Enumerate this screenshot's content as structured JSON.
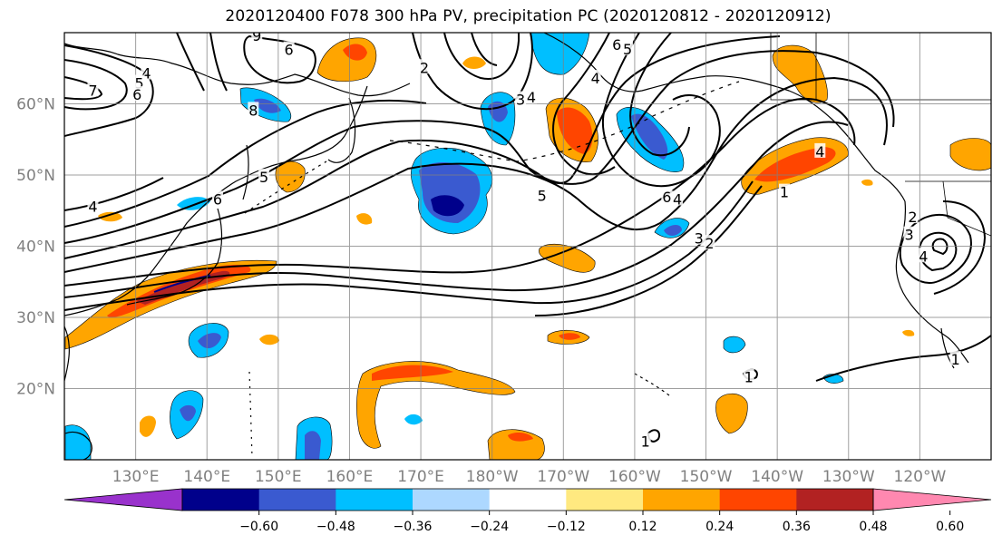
{
  "title": "2020120400 F078 300 hPa PV, precipitation PC (2020120812 - 2020120912)",
  "map": {
    "lon_range": [
      120,
      250
    ],
    "lat_range": [
      10,
      70
    ],
    "grid_step": 10,
    "lat_labels": [
      {
        "lat": 60,
        "text": "60°N"
      },
      {
        "lat": 50,
        "text": "50°N"
      },
      {
        "lat": 40,
        "text": "40°N"
      },
      {
        "lat": 30,
        "text": "30°N"
      },
      {
        "lat": 20,
        "text": "20°N"
      }
    ],
    "lon_labels": [
      {
        "lon": 130,
        "text": "130°E"
      },
      {
        "lon": 140,
        "text": "140°E"
      },
      {
        "lon": 150,
        "text": "150°E"
      },
      {
        "lon": 160,
        "text": "160°E"
      },
      {
        "lon": 170,
        "text": "170°E"
      },
      {
        "lon": 180,
        "text": "180°W"
      },
      {
        "lon": 190,
        "text": "170°W"
      },
      {
        "lon": 200,
        "text": "160°W"
      },
      {
        "lon": 210,
        "text": "150°W"
      },
      {
        "lon": 220,
        "text": "140°W"
      },
      {
        "lon": 230,
        "text": "130°W"
      },
      {
        "lon": 240,
        "text": "120°W"
      }
    ],
    "contour_labels": [
      {
        "lon": 131.5,
        "lat": 64.2,
        "text": "4"
      },
      {
        "lon": 130.5,
        "lat": 62.8,
        "text": "5"
      },
      {
        "lon": 130.2,
        "lat": 61.2,
        "text": "6"
      },
      {
        "lon": 124.0,
        "lat": 61.8,
        "text": "7"
      },
      {
        "lon": 124.0,
        "lat": 45.5,
        "text": "4"
      },
      {
        "lon": 147.0,
        "lat": 69.5,
        "text": "9"
      },
      {
        "lon": 151.5,
        "lat": 67.5,
        "text": "6"
      },
      {
        "lon": 170.5,
        "lat": 65.0,
        "text": "2"
      },
      {
        "lon": 184.0,
        "lat": 60.5,
        "text": "3"
      },
      {
        "lon": 185.5,
        "lat": 60.8,
        "text": "4"
      },
      {
        "lon": 146.5,
        "lat": 59.0,
        "text": "8"
      },
      {
        "lon": 148.0,
        "lat": 49.6,
        "text": "5"
      },
      {
        "lon": 141.5,
        "lat": 46.5,
        "text": "6"
      },
      {
        "lon": 197.5,
        "lat": 68.2,
        "text": "6"
      },
      {
        "lon": 199.0,
        "lat": 67.6,
        "text": "5"
      },
      {
        "lon": 194.5,
        "lat": 63.5,
        "text": "4"
      },
      {
        "lon": 187.0,
        "lat": 47.0,
        "text": "5"
      },
      {
        "lon": 204.5,
        "lat": 46.8,
        "text": "6"
      },
      {
        "lon": 206.0,
        "lat": 46.5,
        "text": "4"
      },
      {
        "lon": 209.0,
        "lat": 41.0,
        "text": "3"
      },
      {
        "lon": 210.5,
        "lat": 40.3,
        "text": "2"
      },
      {
        "lon": 221.0,
        "lat": 47.5,
        "text": "1"
      },
      {
        "lon": 226.0,
        "lat": 53.2,
        "text": "4"
      },
      {
        "lon": 239.0,
        "lat": 44.0,
        "text": "2"
      },
      {
        "lon": 238.5,
        "lat": 41.5,
        "text": "3"
      },
      {
        "lon": 240.5,
        "lat": 38.5,
        "text": "4"
      },
      {
        "lon": 245.0,
        "lat": 24.0,
        "text": "1"
      },
      {
        "lon": 216.0,
        "lat": 21.5,
        "text": "1"
      },
      {
        "lon": 201.5,
        "lat": 12.5,
        "text": "1"
      }
    ]
  },
  "colorbar": {
    "colors": [
      "#9932cc",
      "#00008b",
      "#3a5ad0",
      "#00bfff",
      "#add8ff",
      "#ffffff",
      "#ffe980",
      "#ffa500",
      "#ff4500",
      "#b22222",
      "#ff88b0"
    ],
    "ticks": [
      "−0.60",
      "−0.48",
      "−0.36",
      "−0.24",
      "−0.12",
      "0.12",
      "0.24",
      "0.36",
      "0.48",
      "0.60"
    ]
  }
}
